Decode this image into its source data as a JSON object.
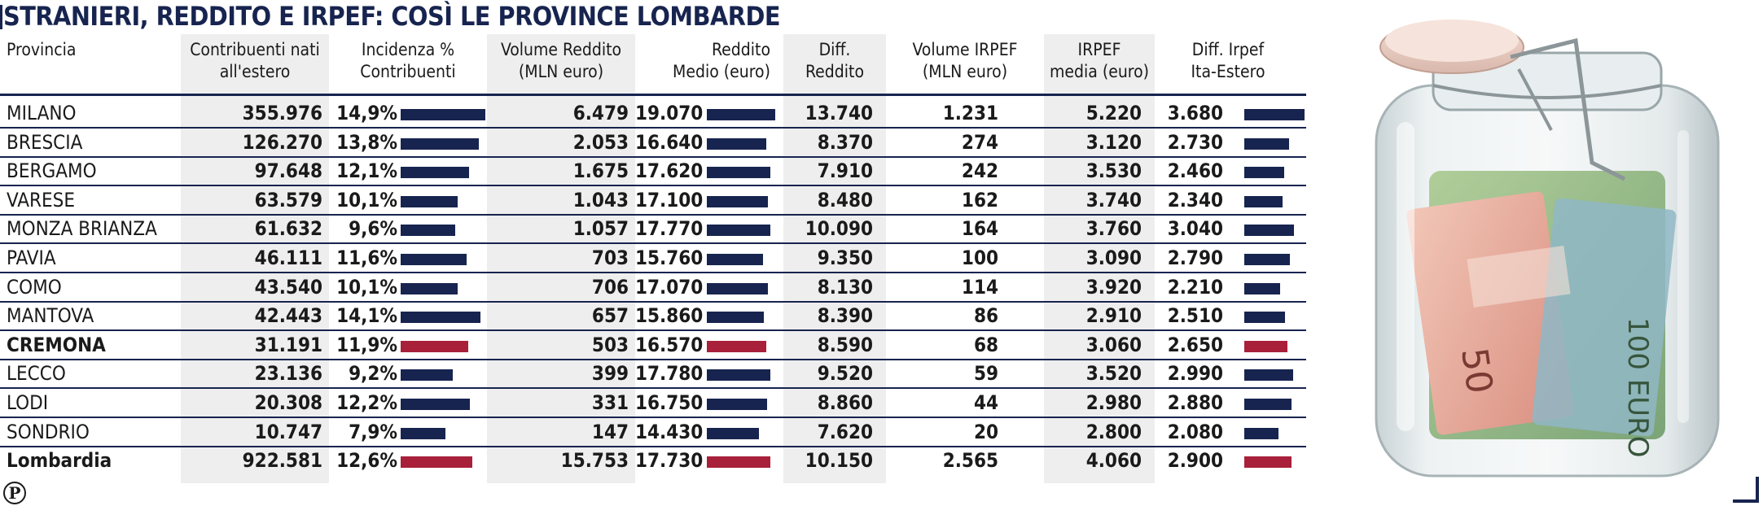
{
  "title": "STRANIERI, REDDITO E IRPEF: COSÌ LE PROVINCE LOMBARDE",
  "headers": {
    "provincia": "Provincia",
    "contribuenti": "Contribuenti nati\nall'estero",
    "incidenza": "Incidenza %\nContribuenti",
    "volume_reddito": "Volume Reddito\n(MLN euro)",
    "reddito_medio": "Reddito\nMedio (euro)",
    "diff_reddito": "Diff.\nReddito",
    "volume_irpef": "Volume IRPEF\n(MLN euro)",
    "irpef_media": "IRPEF\nmedia (euro)",
    "diff_irpef": "Diff. Irpef\nIta-Estero"
  },
  "colors": {
    "navy": "#17244f",
    "highlight": "#a8203a",
    "shade": "#eeeeee"
  },
  "logo": "P",
  "chart_data": {
    "type": "table",
    "title": "STRANIERI, REDDITO E IRPEF: COSÌ LE PROVINCE LOMBARDE",
    "columns": [
      "Provincia",
      "Contribuenti nati all'estero",
      "Incidenza % Contribuenti",
      "Volume Reddito (MLN euro)",
      "Reddito Medio (euro)",
      "Diff. Reddito",
      "Volume IRPEF (MLN euro)",
      "IRPEF media (euro)",
      "Diff. Irpef Ita-Estero"
    ],
    "rows": [
      {
        "provincia": "MILANO",
        "highlight": false,
        "contribuenti": "355.976",
        "incidenza": "14,9%",
        "incidenza_value": 14.9,
        "volume_reddito": "6.479",
        "reddito_medio": "19.070",
        "reddito_medio_value": 19070,
        "diff_reddito": "13.740",
        "volume_irpef": "1.231",
        "irpef_media": "5.220",
        "diff_irpef": "3.680",
        "diff_irpef_value": 3680
      },
      {
        "provincia": "BRESCIA",
        "highlight": false,
        "contribuenti": "126.270",
        "incidenza": "13,8%",
        "incidenza_value": 13.8,
        "volume_reddito": "2.053",
        "reddito_medio": "16.640",
        "reddito_medio_value": 16640,
        "diff_reddito": "8.370",
        "volume_irpef": "274",
        "irpef_media": "3.120",
        "diff_irpef": "2.730",
        "diff_irpef_value": 2730
      },
      {
        "provincia": "BERGAMO",
        "highlight": false,
        "contribuenti": "97.648",
        "incidenza": "12,1%",
        "incidenza_value": 12.1,
        "volume_reddito": "1.675",
        "reddito_medio": "17.620",
        "reddito_medio_value": 17620,
        "diff_reddito": "7.910",
        "volume_irpef": "242",
        "irpef_media": "3.530",
        "diff_irpef": "2.460",
        "diff_irpef_value": 2460
      },
      {
        "provincia": "VARESE",
        "highlight": false,
        "contribuenti": "63.579",
        "incidenza": "10,1%",
        "incidenza_value": 10.1,
        "volume_reddito": "1.043",
        "reddito_medio": "17.100",
        "reddito_medio_value": 17100,
        "diff_reddito": "8.480",
        "volume_irpef": "162",
        "irpef_media": "3.740",
        "diff_irpef": "2.340",
        "diff_irpef_value": 2340
      },
      {
        "provincia": "MONZA BRIANZA",
        "highlight": false,
        "contribuenti": "61.632",
        "incidenza": "9,6%",
        "incidenza_value": 9.6,
        "volume_reddito": "1.057",
        "reddito_medio": "17.770",
        "reddito_medio_value": 17770,
        "diff_reddito": "10.090",
        "volume_irpef": "164",
        "irpef_media": "3.760",
        "diff_irpef": "3.040",
        "diff_irpef_value": 3040
      },
      {
        "provincia": "PAVIA",
        "highlight": false,
        "contribuenti": "46.111",
        "incidenza": "11,6%",
        "incidenza_value": 11.6,
        "volume_reddito": "703",
        "reddito_medio": "15.760",
        "reddito_medio_value": 15760,
        "diff_reddito": "9.350",
        "volume_irpef": "100",
        "irpef_media": "3.090",
        "diff_irpef": "2.790",
        "diff_irpef_value": 2790
      },
      {
        "provincia": "COMO",
        "highlight": false,
        "contribuenti": "43.540",
        "incidenza": "10,1%",
        "incidenza_value": 10.1,
        "volume_reddito": "706",
        "reddito_medio": "17.070",
        "reddito_medio_value": 17070,
        "diff_reddito": "8.130",
        "volume_irpef": "114",
        "irpef_media": "3.920",
        "diff_irpef": "2.210",
        "diff_irpef_value": 2210
      },
      {
        "provincia": "MANTOVA",
        "highlight": false,
        "contribuenti": "42.443",
        "incidenza": "14,1%",
        "incidenza_value": 14.1,
        "volume_reddito": "657",
        "reddito_medio": "15.860",
        "reddito_medio_value": 15860,
        "diff_reddito": "8.390",
        "volume_irpef": "86",
        "irpef_media": "2.910",
        "diff_irpef": "2.510",
        "diff_irpef_value": 2510
      },
      {
        "provincia": "CREMONA",
        "highlight": true,
        "contribuenti": "31.191",
        "incidenza": "11,9%",
        "incidenza_value": 11.9,
        "volume_reddito": "503",
        "reddito_medio": "16.570",
        "reddito_medio_value": 16570,
        "diff_reddito": "8.590",
        "volume_irpef": "68",
        "irpef_media": "3.060",
        "diff_irpef": "2.650",
        "diff_irpef_value": 2650
      },
      {
        "provincia": "LECCO",
        "highlight": false,
        "contribuenti": "23.136",
        "incidenza": "9,2%",
        "incidenza_value": 9.2,
        "volume_reddito": "399",
        "reddito_medio": "17.780",
        "reddito_medio_value": 17780,
        "diff_reddito": "9.520",
        "volume_irpef": "59",
        "irpef_media": "3.520",
        "diff_irpef": "2.990",
        "diff_irpef_value": 2990
      },
      {
        "provincia": "LODI",
        "highlight": false,
        "contribuenti": "20.308",
        "incidenza": "12,2%",
        "incidenza_value": 12.2,
        "volume_reddito": "331",
        "reddito_medio": "16.750",
        "reddito_medio_value": 16750,
        "diff_reddito": "8.860",
        "volume_irpef": "44",
        "irpef_media": "2.980",
        "diff_irpef": "2.880",
        "diff_irpef_value": 2880
      },
      {
        "provincia": "SONDRIO",
        "highlight": false,
        "contribuenti": "10.747",
        "incidenza": "7,9%",
        "incidenza_value": 7.9,
        "volume_reddito": "147",
        "reddito_medio": "14.430",
        "reddito_medio_value": 14430,
        "diff_reddito": "7.620",
        "volume_irpef": "20",
        "irpef_media": "2.800",
        "diff_irpef": "2.080",
        "diff_irpef_value": 2080
      },
      {
        "provincia": "Lombardia",
        "highlight": true,
        "total": true,
        "contribuenti": "922.581",
        "incidenza": "12,6%",
        "incidenza_value": 12.6,
        "volume_reddito": "15.753",
        "reddito_medio": "17.730",
        "reddito_medio_value": 17730,
        "diff_reddito": "10.150",
        "volume_irpef": "2.565",
        "irpef_media": "4.060",
        "diff_irpef": "2.900",
        "diff_irpef_value": 2900
      }
    ]
  }
}
